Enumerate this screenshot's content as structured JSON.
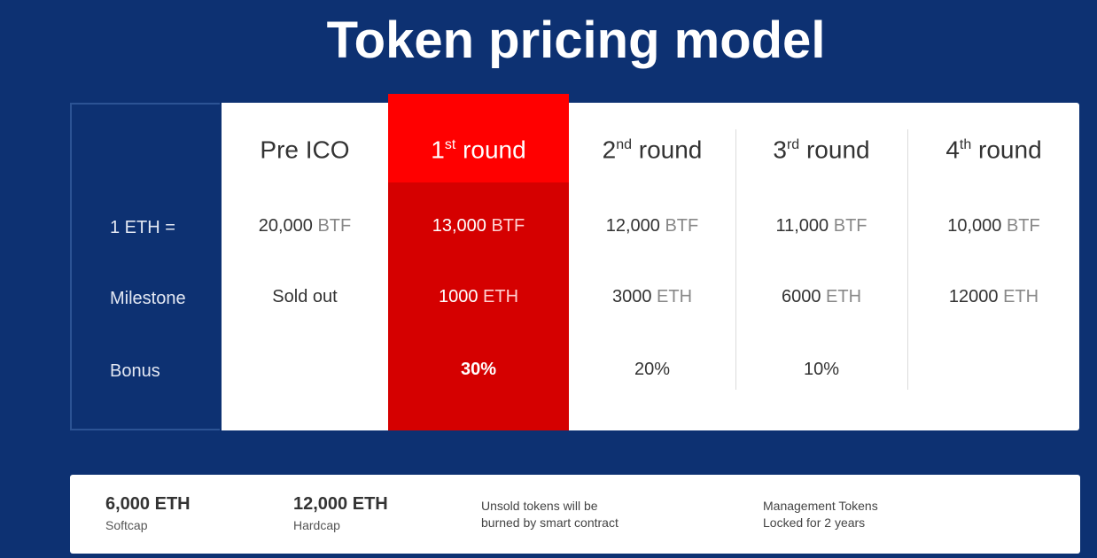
{
  "title": "Token pricing model",
  "row_labels": [
    "1 ETH =",
    "Milestone",
    "Bonus"
  ],
  "rounds": [
    {
      "name": "Pre ICO",
      "sup": "",
      "suffix": "",
      "rate": "20,000",
      "rate_unit": "BTF",
      "milestone": "Sold out",
      "milestone_unit": "",
      "bonus": ""
    },
    {
      "name": "1",
      "sup": "st",
      "suffix": " round",
      "rate": "13,000",
      "rate_unit": "BTF",
      "milestone": "1000",
      "milestone_unit": "ETH",
      "bonus": "30%"
    },
    {
      "name": "2",
      "sup": "nd",
      "suffix": " round",
      "rate": "12,000",
      "rate_unit": "BTF",
      "milestone": "3000",
      "milestone_unit": "ETH",
      "bonus": "20%"
    },
    {
      "name": "3",
      "sup": "rd",
      "suffix": " round",
      "rate": "11,000",
      "rate_unit": "BTF",
      "milestone": "6000",
      "milestone_unit": "ETH",
      "bonus": "10%"
    },
    {
      "name": "4",
      "sup": "th",
      "suffix": " round",
      "rate": "10,000",
      "rate_unit": "BTF",
      "milestone": "12000",
      "milestone_unit": "ETH",
      "bonus": ""
    }
  ],
  "summary": {
    "softcap_value": "6,000 ETH",
    "softcap_label": "Softcap",
    "hardcap_value": "12,000 ETH",
    "hardcap_label": "Hardcap",
    "unsold_line1": "Unsold tokens will be",
    "unsold_line2": "burned by smart contract",
    "mgmt_line1": "Management Tokens",
    "mgmt_line2": "Locked for 2 years"
  },
  "colors": {
    "background": "#0d3172",
    "featured_head": "#ff0000",
    "featured_body": "#d50000"
  }
}
